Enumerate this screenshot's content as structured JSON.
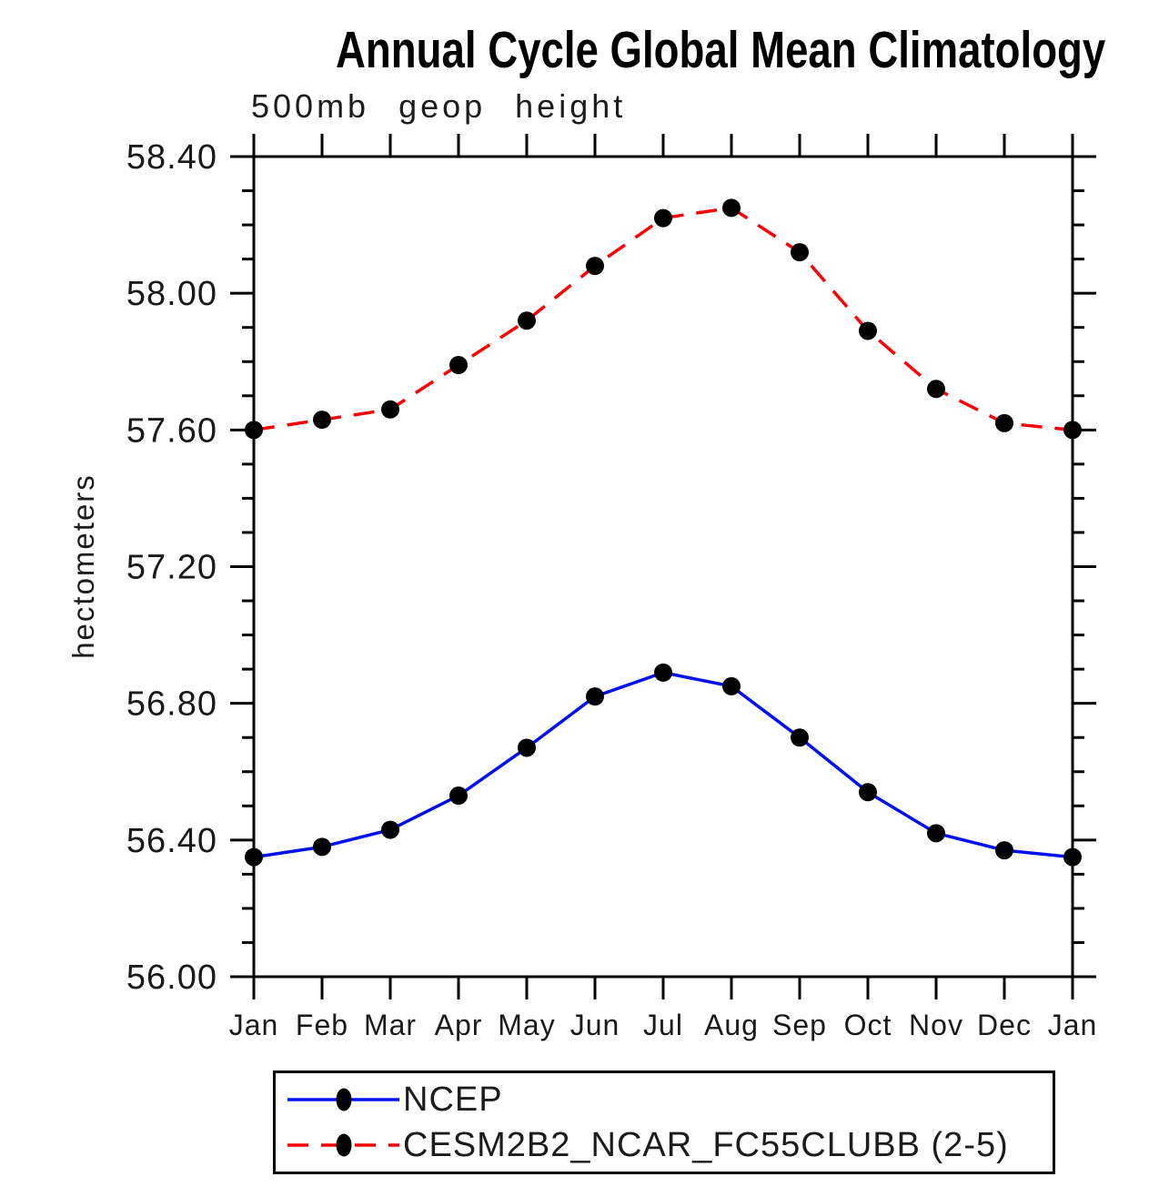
{
  "chart_data": {
    "type": "line",
    "title": "Annual Cycle Global Mean Climatology",
    "subtitle": "500mb geop height",
    "ylabel": "hectometers",
    "xlabel": "",
    "categories": [
      "Jan",
      "Feb",
      "Mar",
      "Apr",
      "May",
      "Jun",
      "Jul",
      "Aug",
      "Sep",
      "Oct",
      "Nov",
      "Dec",
      "Jan"
    ],
    "ylim": [
      56.0,
      58.4
    ],
    "y_major_step": 0.4,
    "y_minor_step": 0.1,
    "y_tick_labels": [
      "56.00",
      "56.40",
      "56.80",
      "57.20",
      "57.60",
      "58.00",
      "58.40"
    ],
    "grid": "off",
    "frame": "box-with-outward-ticks",
    "legend_position": "bottom",
    "series": [
      {
        "name": "NCEP",
        "color": "#0010ee",
        "line_style": "solid",
        "marker": "filled-circle",
        "marker_color": "#000000",
        "values": [
          56.35,
          56.38,
          56.43,
          56.53,
          56.67,
          56.82,
          56.89,
          56.85,
          56.7,
          56.54,
          56.42,
          56.37,
          56.35
        ]
      },
      {
        "name": "CESM2B2_NCAR_FC55CLUBB (2-5)",
        "color": "#fb0006",
        "line_style": "dashed",
        "marker": "filled-circle",
        "marker_color": "#000000",
        "values": [
          57.6,
          57.63,
          57.66,
          57.79,
          57.92,
          58.08,
          58.22,
          58.25,
          58.12,
          57.89,
          57.72,
          57.62,
          57.6
        ]
      }
    ]
  }
}
